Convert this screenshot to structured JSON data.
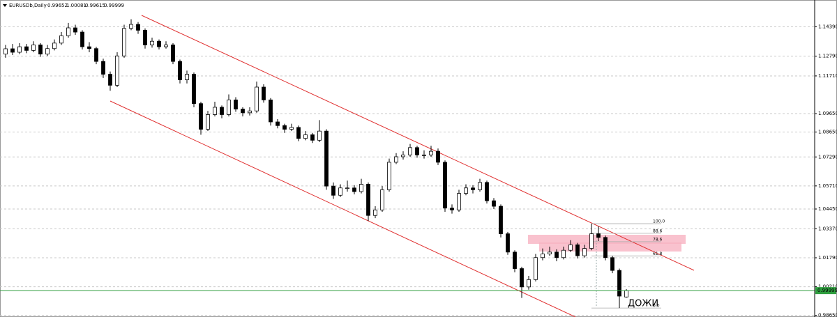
{
  "chart_data": {
    "type": "candlestick",
    "symbol": "EURUSDb,Daily",
    "ylim": [
      0.9856,
      1.1585
    ],
    "yticks": [
      {
        "value": 1.1439,
        "label": "1.14390"
      },
      {
        "value": 1.1279,
        "label": "1.12790"
      },
      {
        "value": 1.1171,
        "label": "1.11710"
      },
      {
        "value": 1.0965,
        "label": "1.09650"
      },
      {
        "value": 1.0865,
        "label": "1.08650"
      },
      {
        "value": 1.0729,
        "label": "1.07290"
      },
      {
        "value": 1.0571,
        "label": "1.05710"
      },
      {
        "value": 1.0445,
        "label": "1.04450"
      },
      {
        "value": 1.0337,
        "label": "1.03370"
      },
      {
        "value": 1.0179,
        "label": "1.01790"
      },
      {
        "value": 1.0021,
        "label": "1.00210"
      },
      {
        "value": 0.9865,
        "label": "0.98650"
      }
    ],
    "grid": true,
    "up_color": "#ffffff",
    "down_color": "#000000",
    "price_line_color": "#2e9e3e",
    "candles": [
      [
        1.129,
        1.134,
        1.127,
        1.1319
      ],
      [
        1.1319,
        1.1345,
        1.1285,
        1.13
      ],
      [
        1.13,
        1.135,
        1.129,
        1.133
      ],
      [
        1.133,
        1.1345,
        1.1295,
        1.131
      ],
      [
        1.131,
        1.136,
        1.13,
        1.134
      ],
      [
        1.134,
        1.135,
        1.1275,
        1.129
      ],
      [
        1.129,
        1.134,
        1.128,
        1.132
      ],
      [
        1.132,
        1.137,
        1.131,
        1.135
      ],
      [
        1.135,
        1.141,
        1.134,
        1.139
      ],
      [
        1.139,
        1.146,
        1.138,
        1.1433
      ],
      [
        1.1433,
        1.145,
        1.1395,
        1.141
      ],
      [
        1.141,
        1.142,
        1.1315,
        1.133
      ],
      [
        1.133,
        1.1355,
        1.13,
        1.132
      ],
      [
        1.132,
        1.133,
        1.1235,
        1.125
      ],
      [
        1.125,
        1.1265,
        1.116,
        1.118
      ],
      [
        1.118,
        1.1195,
        1.109,
        1.112
      ],
      [
        1.112,
        1.13,
        1.111,
        1.128
      ],
      [
        1.128,
        1.145,
        1.127,
        1.143
      ],
      [
        1.143,
        1.148,
        1.142,
        1.1452
      ],
      [
        1.1452,
        1.1465,
        1.14,
        1.142
      ],
      [
        1.142,
        1.143,
        1.132,
        1.134
      ],
      [
        1.134,
        1.138,
        1.1325,
        1.136
      ],
      [
        1.136,
        1.137,
        1.1315,
        1.133
      ],
      [
        1.133,
        1.136,
        1.132,
        1.134
      ],
      [
        1.134,
        1.135,
        1.1235,
        1.125
      ],
      [
        1.125,
        1.126,
        1.113,
        1.115
      ],
      [
        1.115,
        1.12,
        1.113,
        1.118
      ],
      [
        1.118,
        1.119,
        1.1,
        1.102
      ],
      [
        1.102,
        1.103,
        1.085,
        1.088
      ],
      [
        1.088,
        1.098,
        1.087,
        1.096
      ],
      [
        1.096,
        1.103,
        1.095,
        1.1
      ],
      [
        1.1,
        1.101,
        1.094,
        1.096
      ],
      [
        1.096,
        1.107,
        1.095,
        1.104
      ],
      [
        1.104,
        1.1055,
        1.0975,
        1.099
      ],
      [
        1.099,
        1.1,
        1.095,
        1.097
      ],
      [
        1.097,
        1.1,
        1.0955,
        1.098
      ],
      [
        1.098,
        1.114,
        1.097,
        1.111
      ],
      [
        1.111,
        1.1125,
        1.1025,
        1.104
      ],
      [
        1.104,
        1.105,
        1.09,
        1.092
      ],
      [
        1.092,
        1.0935,
        1.0885,
        1.09
      ],
      [
        1.09,
        1.091,
        1.086,
        1.088
      ],
      [
        1.088,
        1.091,
        1.087,
        1.089
      ],
      [
        1.089,
        1.09,
        1.0815,
        1.083
      ],
      [
        1.083,
        1.087,
        1.082,
        1.085
      ],
      [
        1.085,
        1.086,
        1.0805,
        1.082
      ],
      [
        1.082,
        1.093,
        1.081,
        1.087
      ],
      [
        1.087,
        1.088,
        1.055,
        1.057
      ],
      [
        1.057,
        1.059,
        1.05,
        1.052
      ],
      [
        1.052,
        1.058,
        1.051,
        1.056
      ],
      [
        1.056,
        1.06,
        1.054,
        1.056
      ],
      [
        1.056,
        1.0575,
        1.0525,
        1.054
      ],
      [
        1.054,
        1.061,
        1.053,
        1.058
      ],
      [
        1.058,
        1.059,
        1.038,
        1.041
      ],
      [
        1.041,
        1.046,
        1.0395,
        1.044
      ],
      [
        1.044,
        1.057,
        1.043,
        1.055
      ],
      [
        1.055,
        1.072,
        1.054,
        1.07
      ],
      [
        1.07,
        1.075,
        1.069,
        1.073
      ],
      [
        1.073,
        1.076,
        1.0715,
        1.074
      ],
      [
        1.074,
        1.08,
        1.073,
        1.078
      ],
      [
        1.078,
        1.079,
        1.0725,
        1.074
      ],
      [
        1.074,
        1.0765,
        1.072,
        1.074
      ],
      [
        1.074,
        1.079,
        1.073,
        1.076
      ],
      [
        1.076,
        1.0775,
        1.0685,
        1.07
      ],
      [
        1.07,
        1.071,
        1.043,
        1.045
      ],
      [
        1.045,
        1.047,
        1.042,
        1.044
      ],
      [
        1.044,
        1.055,
        1.043,
        1.053
      ],
      [
        1.053,
        1.058,
        1.052,
        1.056
      ],
      [
        1.056,
        1.0575,
        1.053,
        1.055
      ],
      [
        1.055,
        1.061,
        1.054,
        1.059
      ],
      [
        1.059,
        1.06,
        1.0475,
        1.049
      ],
      [
        1.049,
        1.0505,
        1.0445,
        1.046
      ],
      [
        1.046,
        1.047,
        1.029,
        1.031
      ],
      [
        1.031,
        1.032,
        1.0195,
        1.021
      ],
      [
        1.021,
        1.022,
        1.01,
        1.012
      ],
      [
        1.012,
        1.013,
        0.996,
        1.002
      ],
      [
        1.002,
        1.008,
        1.0005,
        1.006
      ],
      [
        1.006,
        1.02,
        1.005,
        1.018
      ],
      [
        1.018,
        1.023,
        1.0165,
        1.02
      ],
      [
        1.02,
        1.024,
        1.019,
        1.021
      ],
      [
        1.021,
        1.0225,
        1.016,
        1.018
      ],
      [
        1.018,
        1.024,
        1.017,
        1.022
      ],
      [
        1.022,
        1.0275,
        1.021,
        1.025
      ],
      [
        1.025,
        1.026,
        1.0175,
        1.019
      ],
      [
        1.019,
        1.025,
        1.018,
        1.023
      ],
      [
        1.023,
        1.0365,
        1.022,
        1.031
      ],
      [
        1.031,
        1.035,
        1.027,
        1.029
      ],
      [
        1.029,
        1.03,
        1.0165,
        1.018
      ],
      [
        1.018,
        1.019,
        1.0095,
        1.011
      ],
      [
        1.011,
        1.012,
        0.9905,
        0.997
      ],
      [
        0.99652,
        1.00081,
        0.99615,
        0.99999
      ]
    ],
    "fibonacci": {
      "high": 1.0365,
      "low": 0.9905,
      "levels": [
        {
          "value": 100,
          "label": "100.0"
        },
        88.6,
        78.6,
        61.8,
        {
          "value": 0,
          "label": "0.0"
        }
      ]
    },
    "annotation": "ДОЖИ"
  }
}
